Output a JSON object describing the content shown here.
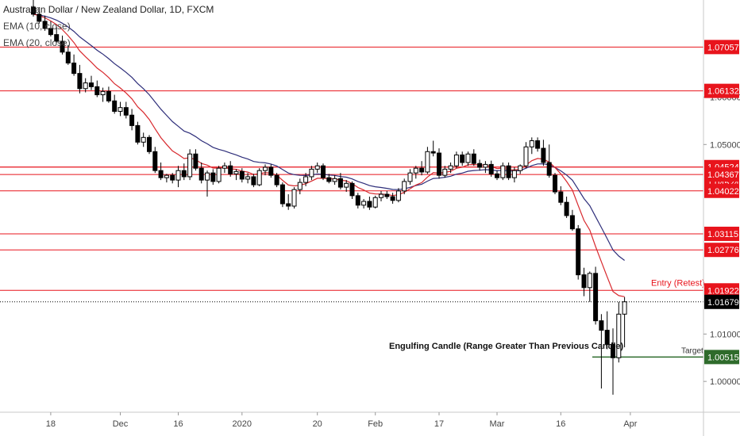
{
  "header": {
    "title": "Australian Dollar / New Zealand Dollar, 1D, FXCM",
    "indicators": [
      "EMA (10, close)",
      "EMA (20, close)"
    ]
  },
  "colors": {
    "up": "#ffffff",
    "down": "#000000",
    "wick": "#000000",
    "ema10": "#d8292e",
    "ema20": "#2e2e7a",
    "level": "#e8141c",
    "target": "#2e6b2b",
    "current": "#000000"
  },
  "chart_data": {
    "type": "candlestick",
    "symbol": "AUDNZD",
    "timeframe": "1D",
    "ylim": [
      0.9935,
      1.0805
    ],
    "y_ticks": [
      "1.00000",
      "1.01000",
      "1.05000",
      "1.06000"
    ],
    "x_ticks": [
      "18",
      "Dec",
      "16",
      "2020",
      "20",
      "Feb",
      "17",
      "Mar",
      "16",
      "Apr"
    ],
    "levels": [
      {
        "value": 1.07057,
        "label": "1.07057"
      },
      {
        "value": 1.06132,
        "label": "1.06132"
      },
      {
        "value": 1.04524,
        "label": "1.04524"
      },
      {
        "value": 1.04524,
        "label": "1.04524"
      },
      {
        "value": 1.04367,
        "label": "1.04367"
      },
      {
        "value": 1.04022,
        "label": "1.04022"
      },
      {
        "value": 1.03115,
        "label": "1.03115"
      },
      {
        "value": 1.02776,
        "label": "1.02776"
      },
      {
        "value": 1.01922,
        "label": "1.01922",
        "annotation": "Entry (Retest)"
      }
    ],
    "current_price": {
      "value": 1.01679,
      "label": "1.01679"
    },
    "target": {
      "value": 1.00515,
      "label": "1.00515",
      "annotation": "Target"
    },
    "annotations": [
      "Engulfing Candle (Range Greater Than Previous Candle)"
    ],
    "candles": [
      {
        "o": 1.079,
        "h": 1.0805,
        "l": 1.077,
        "c": 1.0775
      },
      {
        "o": 1.0775,
        "h": 1.079,
        "l": 1.0755,
        "c": 1.076
      },
      {
        "o": 1.076,
        "h": 1.0772,
        "l": 1.074,
        "c": 1.0745
      },
      {
        "o": 1.0745,
        "h": 1.076,
        "l": 1.0728,
        "c": 1.0732
      },
      {
        "o": 1.0732,
        "h": 1.0748,
        "l": 1.0715,
        "c": 1.0718
      },
      {
        "o": 1.0718,
        "h": 1.073,
        "l": 1.069,
        "c": 1.0695
      },
      {
        "o": 1.0695,
        "h": 1.071,
        "l": 1.0668,
        "c": 1.0672
      },
      {
        "o": 1.0672,
        "h": 1.069,
        "l": 1.0645,
        "c": 1.065
      },
      {
        "o": 1.065,
        "h": 1.0668,
        "l": 1.0608,
        "c": 1.0618
      },
      {
        "o": 1.0618,
        "h": 1.064,
        "l": 1.061,
        "c": 1.063
      },
      {
        "o": 1.063,
        "h": 1.0645,
        "l": 1.0615,
        "c": 1.0622
      },
      {
        "o": 1.0622,
        "h": 1.0635,
        "l": 1.06,
        "c": 1.0605
      },
      {
        "o": 1.0605,
        "h": 1.062,
        "l": 1.059,
        "c": 1.0612
      },
      {
        "o": 1.0612,
        "h": 1.0622,
        "l": 1.0588,
        "c": 1.0592
      },
      {
        "o": 1.0592,
        "h": 1.0605,
        "l": 1.0565,
        "c": 1.057
      },
      {
        "o": 1.057,
        "h": 1.059,
        "l": 1.056,
        "c": 1.0578
      },
      {
        "o": 1.0578,
        "h": 1.059,
        "l": 1.0555,
        "c": 1.0562
      },
      {
        "o": 1.0562,
        "h": 1.0575,
        "l": 1.053,
        "c": 1.054
      },
      {
        "o": 1.054,
        "h": 1.0548,
        "l": 1.05,
        "c": 1.0505
      },
      {
        "o": 1.0505,
        "h": 1.0525,
        "l": 1.0495,
        "c": 1.0515
      },
      {
        "o": 1.0515,
        "h": 1.052,
        "l": 1.048,
        "c": 1.0485
      },
      {
        "o": 1.0485,
        "h": 1.0495,
        "l": 1.044,
        "c": 1.0445
      },
      {
        "o": 1.0445,
        "h": 1.0462,
        "l": 1.0425,
        "c": 1.043
      },
      {
        "o": 1.043,
        "h": 1.0438,
        "l": 1.042,
        "c": 1.0435
      },
      {
        "o": 1.0435,
        "h": 1.044,
        "l": 1.0418,
        "c": 1.0425
      },
      {
        "o": 1.0425,
        "h": 1.0455,
        "l": 1.041,
        "c": 1.0445
      },
      {
        "o": 1.0445,
        "h": 1.046,
        "l": 1.0425,
        "c": 1.0432
      },
      {
        "o": 1.0432,
        "h": 1.049,
        "l": 1.0425,
        "c": 1.048
      },
      {
        "o": 1.048,
        "h": 1.049,
        "l": 1.0445,
        "c": 1.045
      },
      {
        "o": 1.045,
        "h": 1.0462,
        "l": 1.0418,
        "c": 1.0425
      },
      {
        "o": 1.0425,
        "h": 1.0445,
        "l": 1.039,
        "c": 1.044
      },
      {
        "o": 1.044,
        "h": 1.0448,
        "l": 1.0415,
        "c": 1.0422
      },
      {
        "o": 1.0422,
        "h": 1.0455,
        "l": 1.0418,
        "c": 1.045
      },
      {
        "o": 1.045,
        "h": 1.0462,
        "l": 1.044,
        "c": 1.0455
      },
      {
        "o": 1.0455,
        "h": 1.0465,
        "l": 1.0432,
        "c": 1.0438
      },
      {
        "o": 1.0438,
        "h": 1.0448,
        "l": 1.0425,
        "c": 1.0443
      },
      {
        "o": 1.0443,
        "h": 1.045,
        "l": 1.042,
        "c": 1.0427
      },
      {
        "o": 1.0427,
        "h": 1.044,
        "l": 1.0418,
        "c": 1.0432
      },
      {
        "o": 1.0432,
        "h": 1.0438,
        "l": 1.041,
        "c": 1.0415
      },
      {
        "o": 1.0415,
        "h": 1.045,
        "l": 1.0412,
        "c": 1.0445
      },
      {
        "o": 1.0445,
        "h": 1.0458,
        "l": 1.0435,
        "c": 1.0452
      },
      {
        "o": 1.0452,
        "h": 1.0458,
        "l": 1.043,
        "c": 1.0435
      },
      {
        "o": 1.0435,
        "h": 1.044,
        "l": 1.041,
        "c": 1.0415
      },
      {
        "o": 1.0415,
        "h": 1.042,
        "l": 1.0368,
        "c": 1.0375
      },
      {
        "o": 1.0375,
        "h": 1.0395,
        "l": 1.0362,
        "c": 1.037
      },
      {
        "o": 1.037,
        "h": 1.041,
        "l": 1.0365,
        "c": 1.0405
      },
      {
        "o": 1.0405,
        "h": 1.0428,
        "l": 1.0395,
        "c": 1.042
      },
      {
        "o": 1.042,
        "h": 1.044,
        "l": 1.0412,
        "c": 1.0432
      },
      {
        "o": 1.0432,
        "h": 1.0455,
        "l": 1.0425,
        "c": 1.0448
      },
      {
        "o": 1.0448,
        "h": 1.0462,
        "l": 1.044,
        "c": 1.0455
      },
      {
        "o": 1.0455,
        "h": 1.046,
        "l": 1.0425,
        "c": 1.043
      },
      {
        "o": 1.043,
        "h": 1.0438,
        "l": 1.0418,
        "c": 1.0422
      },
      {
        "o": 1.0422,
        "h": 1.0435,
        "l": 1.0415,
        "c": 1.0428
      },
      {
        "o": 1.0428,
        "h": 1.044,
        "l": 1.0405,
        "c": 1.041
      },
      {
        "o": 1.041,
        "h": 1.0425,
        "l": 1.04,
        "c": 1.0418
      },
      {
        "o": 1.0418,
        "h": 1.0422,
        "l": 1.0385,
        "c": 1.0392
      },
      {
        "o": 1.0392,
        "h": 1.0398,
        "l": 1.0365,
        "c": 1.0372
      },
      {
        "o": 1.0372,
        "h": 1.0385,
        "l": 1.0365,
        "c": 1.038
      },
      {
        "o": 1.038,
        "h": 1.039,
        "l": 1.0362,
        "c": 1.0368
      },
      {
        "o": 1.0368,
        "h": 1.0392,
        "l": 1.0365,
        "c": 1.0388
      },
      {
        "o": 1.0388,
        "h": 1.0402,
        "l": 1.038,
        "c": 1.0395
      },
      {
        "o": 1.0395,
        "h": 1.0402,
        "l": 1.0385,
        "c": 1.039
      },
      {
        "o": 1.039,
        "h": 1.0398,
        "l": 1.0375,
        "c": 1.0382
      },
      {
        "o": 1.0382,
        "h": 1.0408,
        "l": 1.0378,
        "c": 1.0402
      },
      {
        "o": 1.0402,
        "h": 1.0428,
        "l": 1.0395,
        "c": 1.0422
      },
      {
        "o": 1.0422,
        "h": 1.0448,
        "l": 1.0415,
        "c": 1.044
      },
      {
        "o": 1.044,
        "h": 1.0455,
        "l": 1.0428,
        "c": 1.045
      },
      {
        "o": 1.045,
        "h": 1.0465,
        "l": 1.0435,
        "c": 1.0442
      },
      {
        "o": 1.0442,
        "h": 1.0495,
        "l": 1.0438,
        "c": 1.0485
      },
      {
        "o": 1.0485,
        "h": 1.0508,
        "l": 1.0475,
        "c": 1.0482
      },
      {
        "o": 1.0482,
        "h": 1.0492,
        "l": 1.0428,
        "c": 1.0435
      },
      {
        "o": 1.0435,
        "h": 1.0455,
        "l": 1.043,
        "c": 1.0448
      },
      {
        "o": 1.0448,
        "h": 1.0462,
        "l": 1.044,
        "c": 1.0455
      },
      {
        "o": 1.0455,
        "h": 1.0485,
        "l": 1.045,
        "c": 1.0478
      },
      {
        "o": 1.0478,
        "h": 1.0485,
        "l": 1.0455,
        "c": 1.0462
      },
      {
        "o": 1.0462,
        "h": 1.0485,
        "l": 1.0455,
        "c": 1.048
      },
      {
        "o": 1.048,
        "h": 1.049,
        "l": 1.0455,
        "c": 1.046
      },
      {
        "o": 1.046,
        "h": 1.0468,
        "l": 1.0445,
        "c": 1.0452
      },
      {
        "o": 1.0452,
        "h": 1.0465,
        "l": 1.044,
        "c": 1.0458
      },
      {
        "o": 1.0458,
        "h": 1.0466,
        "l": 1.0432,
        "c": 1.0438
      },
      {
        "o": 1.0438,
        "h": 1.0445,
        "l": 1.0425,
        "c": 1.043
      },
      {
        "o": 1.043,
        "h": 1.0462,
        "l": 1.0425,
        "c": 1.0455
      },
      {
        "o": 1.0455,
        "h": 1.0462,
        "l": 1.0425,
        "c": 1.043
      },
      {
        "o": 1.043,
        "h": 1.0452,
        "l": 1.042,
        "c": 1.0445
      },
      {
        "o": 1.0445,
        "h": 1.0458,
        "l": 1.0438,
        "c": 1.0455
      },
      {
        "o": 1.0455,
        "h": 1.0505,
        "l": 1.045,
        "c": 1.0495
      },
      {
        "o": 1.0495,
        "h": 1.0515,
        "l": 1.048,
        "c": 1.0508
      },
      {
        "o": 1.0508,
        "h": 1.0515,
        "l": 1.0485,
        "c": 1.0492
      },
      {
        "o": 1.0492,
        "h": 1.051,
        "l": 1.0455,
        "c": 1.0462
      },
      {
        "o": 1.0462,
        "h": 1.05,
        "l": 1.043,
        "c": 1.0435
      },
      {
        "o": 1.0435,
        "h": 1.044,
        "l": 1.0395,
        "c": 1.04
      },
      {
        "o": 1.04,
        "h": 1.0412,
        "l": 1.0372,
        "c": 1.0378
      },
      {
        "o": 1.0378,
        "h": 1.039,
        "l": 1.0345,
        "c": 1.035
      },
      {
        "o": 1.035,
        "h": 1.0362,
        "l": 1.0318,
        "c": 1.0322
      },
      {
        "o": 1.0322,
        "h": 1.033,
        "l": 1.0215,
        "c": 1.0225
      },
      {
        "o": 1.0225,
        "h": 1.024,
        "l": 1.018,
        "c": 1.0198
      },
      {
        "o": 1.0198,
        "h": 1.0232,
        "l": 1.0168,
        "c": 1.0228
      },
      {
        "o": 1.0228,
        "h": 1.0242,
        "l": 1.012,
        "c": 1.0128
      },
      {
        "o": 1.0128,
        "h": 1.0142,
        "l": 0.9985,
        "c": 1.0108
      },
      {
        "o": 1.0108,
        "h": 1.0148,
        "l": 1.0068,
        "c": 1.0078
      },
      {
        "o": 1.0078,
        "h": 1.0112,
        "l": 0.9972,
        "c": 1.005
      },
      {
        "o": 1.005,
        "h": 1.0168,
        "l": 1.004,
        "c": 1.0142
      },
      {
        "o": 1.0142,
        "h": 1.0178,
        "l": 1.0072,
        "c": 1.0168
      }
    ]
  }
}
